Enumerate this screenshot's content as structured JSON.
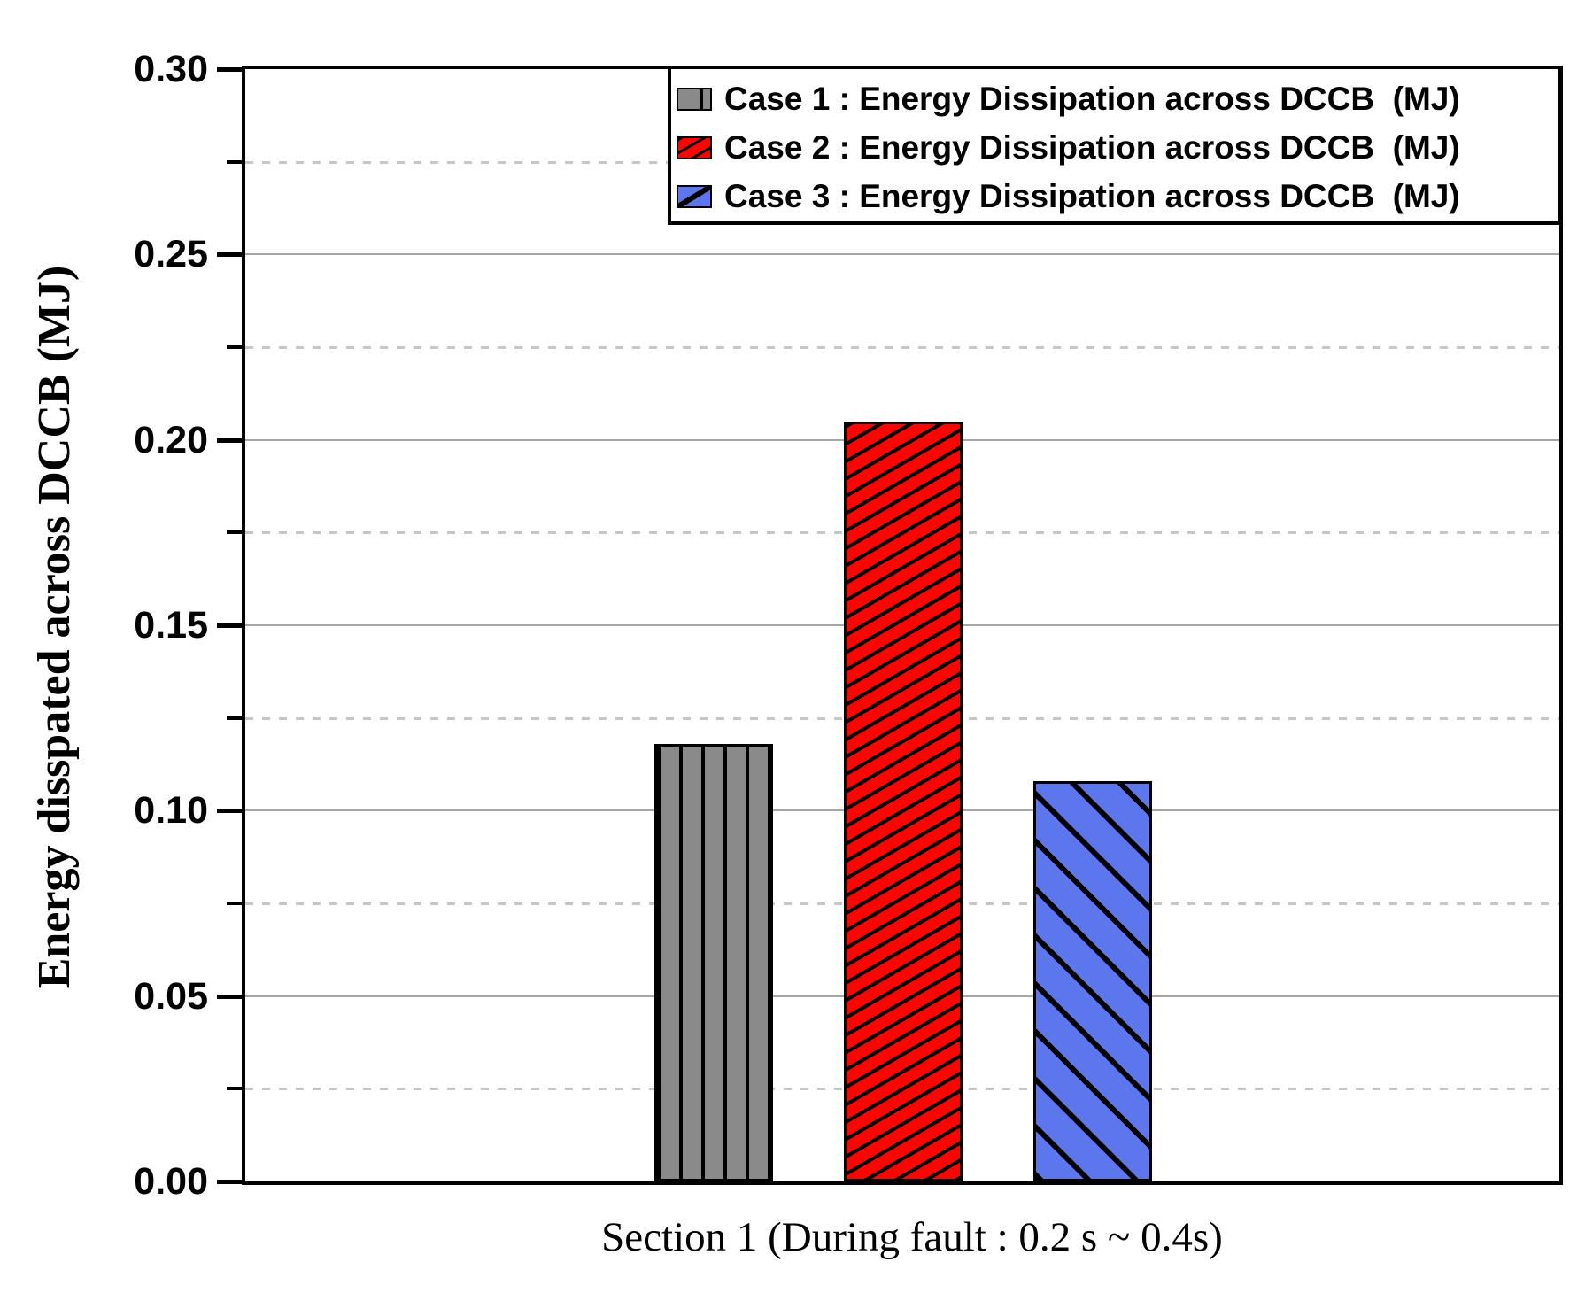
{
  "chart_data": {
    "type": "bar",
    "title": "",
    "categories": [
      "Section 1 (During fault : 0.2 s ~ 0.4s)"
    ],
    "series": [
      {
        "name": "Case 1 : Energy Dissipation across DCCB  (MJ)",
        "values": [
          0.118
        ],
        "color": "#8a8a8a",
        "hatch": "vertical",
        "hatch_color": "#000000"
      },
      {
        "name": "Case 2 : Energy Dissipation across DCCB  (MJ)",
        "values": [
          0.205
        ],
        "color": "#fb0500",
        "hatch": "diagonal-forward",
        "hatch_color": "#000000"
      },
      {
        "name": "Case 3 : Energy Dissipation across DCCB  (MJ)",
        "values": [
          0.108
        ],
        "color": "#5c76ee",
        "hatch": "diagonal-backward",
        "hatch_color": "#000000"
      }
    ],
    "xlabel": "Section 1 (During fault : 0.2 s ~ 0.4s)",
    "ylabel": "Energy disspated across DCCB (MJ)",
    "ylim": [
      0,
      0.3
    ],
    "yticks": [
      "0.00",
      "0.05",
      "0.10",
      "0.15",
      "0.20",
      "0.25",
      "0.30"
    ],
    "ytick_values": [
      0,
      0.05,
      0.1,
      0.15,
      0.2,
      0.25,
      0.3
    ],
    "minor_tick_step": 0.025,
    "grid": {
      "major": "solid",
      "minor": "dashed",
      "major_color": "#a6a6a6",
      "minor_color": "#c6c6c6"
    },
    "legend_position": "top-right",
    "axis_color": "#000000",
    "background": "#ffffff"
  }
}
